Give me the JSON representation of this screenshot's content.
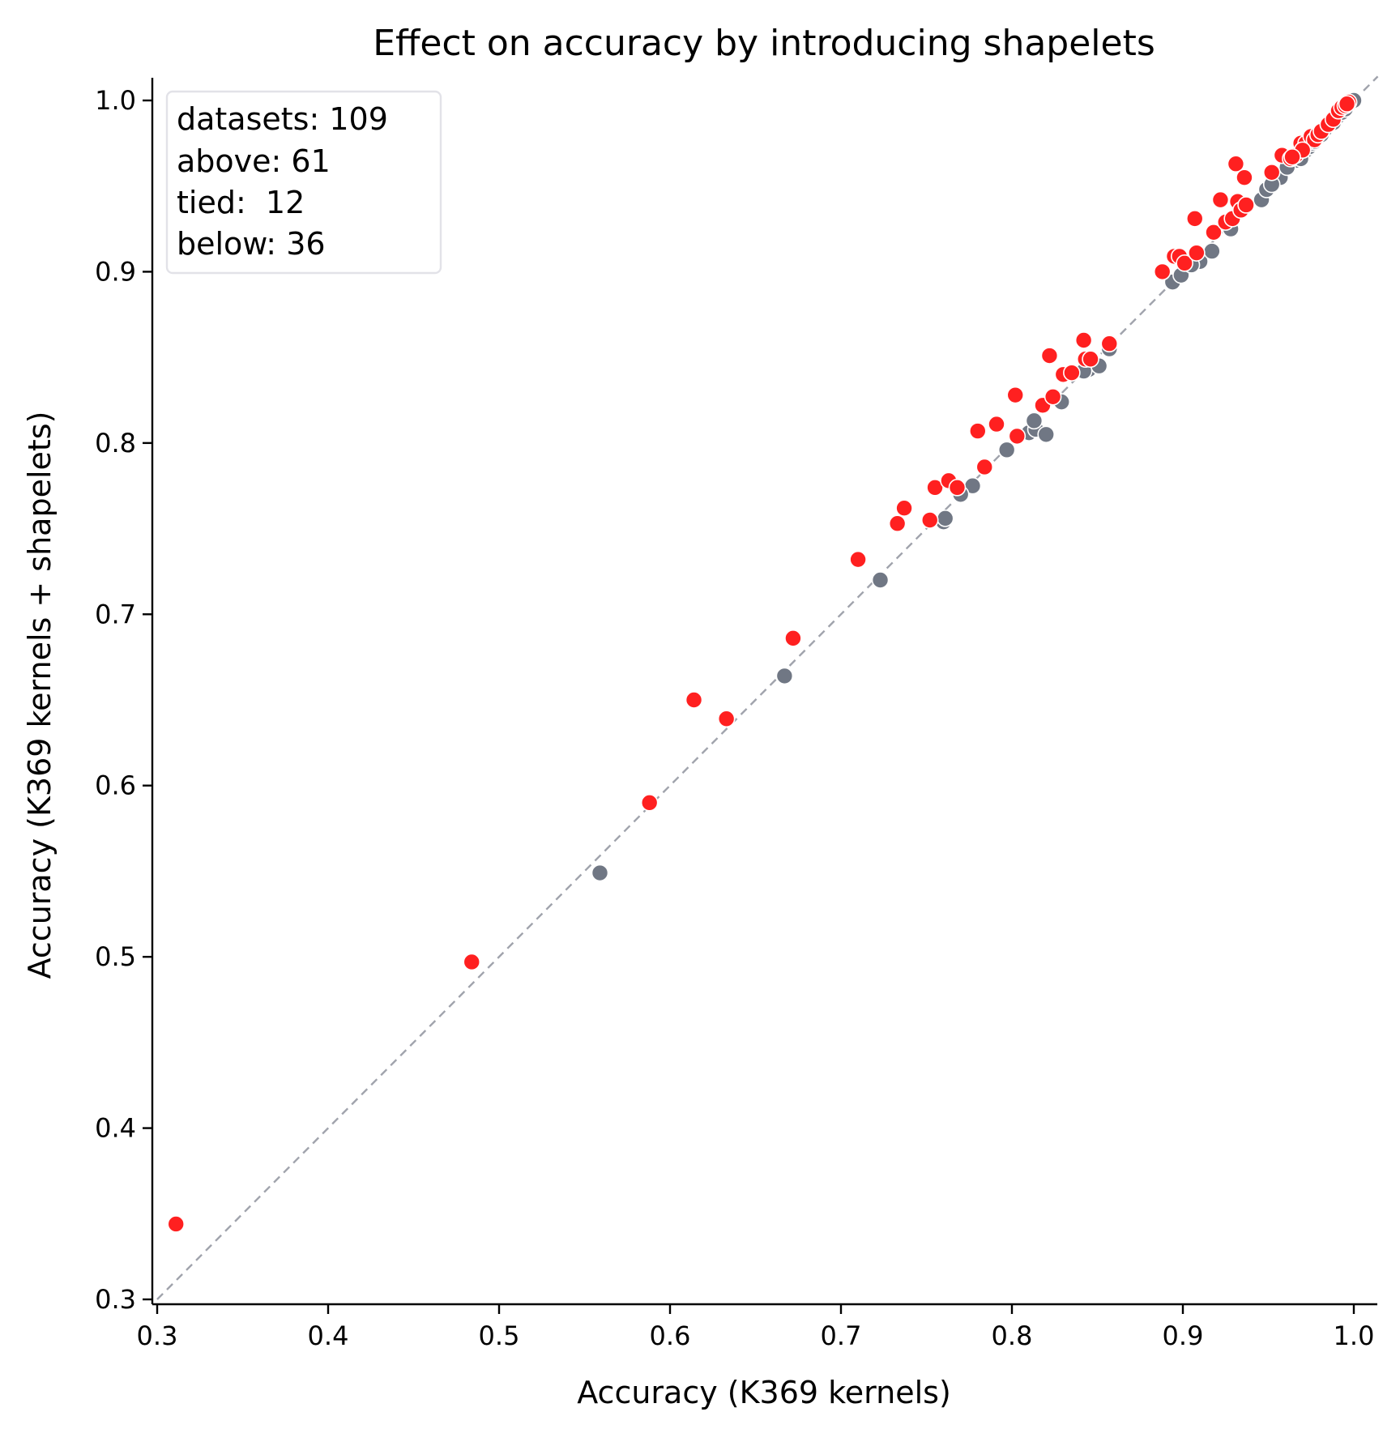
{
  "chart_data": {
    "type": "scatter",
    "title": "Effect on accuracy by introducing shapelets",
    "xlabel": "Accuracy (K369 kernels)",
    "ylabel": "Accuracy (K369 kernels + shapelets)",
    "xlim": [
      0.3,
      1.0
    ],
    "ylim": [
      0.3,
      1.0
    ],
    "xticks": [
      "0.3",
      "0.4",
      "0.5",
      "0.6",
      "0.7",
      "0.8",
      "0.9",
      "1.0"
    ],
    "yticks": [
      "0.3",
      "0.4",
      "0.5",
      "0.6",
      "0.7",
      "0.8",
      "0.9",
      "1.0"
    ],
    "grid": false,
    "legend": "none",
    "stats": [
      "datasets: 109",
      "above: 61",
      "tied:  12",
      "below: 36"
    ],
    "stats_placement": "top-left",
    "colors": {
      "above": "#ff2020",
      "other": "#707784",
      "diagonal": "#a0a3ac"
    },
    "series": [
      {
        "group": "above",
        "points": [
          [
            0.311,
            0.344
          ],
          [
            0.484,
            0.497
          ],
          [
            0.588,
            0.59
          ],
          [
            0.614,
            0.65
          ],
          [
            0.633,
            0.639
          ],
          [
            0.672,
            0.686
          ],
          [
            0.71,
            0.732
          ],
          [
            0.733,
            0.753
          ],
          [
            0.737,
            0.762
          ],
          [
            0.752,
            0.755
          ],
          [
            0.755,
            0.774
          ],
          [
            0.763,
            0.778
          ],
          [
            0.768,
            0.774
          ],
          [
            0.78,
            0.807
          ],
          [
            0.784,
            0.786
          ],
          [
            0.791,
            0.811
          ],
          [
            0.802,
            0.828
          ],
          [
            0.803,
            0.804
          ],
          [
            0.818,
            0.822
          ],
          [
            0.822,
            0.851
          ],
          [
            0.824,
            0.827
          ],
          [
            0.83,
            0.84
          ],
          [
            0.835,
            0.841
          ],
          [
            0.842,
            0.86
          ],
          [
            0.843,
            0.849
          ],
          [
            0.846,
            0.849
          ],
          [
            0.857,
            0.858
          ],
          [
            0.888,
            0.9
          ],
          [
            0.895,
            0.909
          ],
          [
            0.898,
            0.909
          ],
          [
            0.901,
            0.905
          ],
          [
            0.907,
            0.931
          ],
          [
            0.908,
            0.911
          ],
          [
            0.918,
            0.923
          ],
          [
            0.922,
            0.942
          ],
          [
            0.925,
            0.929
          ],
          [
            0.929,
            0.931
          ],
          [
            0.931,
            0.963
          ],
          [
            0.932,
            0.941
          ],
          [
            0.934,
            0.936
          ],
          [
            0.936,
            0.955
          ],
          [
            0.937,
            0.939
          ],
          [
            0.952,
            0.958
          ],
          [
            0.958,
            0.968
          ],
          [
            0.963,
            0.966
          ],
          [
            0.966,
            0.968
          ],
          [
            0.969,
            0.975
          ],
          [
            0.972,
            0.975
          ],
          [
            0.975,
            0.979
          ],
          [
            0.977,
            0.977
          ],
          [
            0.979,
            0.98
          ],
          [
            0.981,
            0.982
          ],
          [
            0.985,
            0.986
          ],
          [
            0.988,
            0.989
          ],
          [
            0.991,
            0.994
          ],
          [
            0.993,
            0.996
          ],
          [
            0.995,
            0.997
          ],
          [
            0.997,
            0.999
          ],
          [
            0.996,
            0.998
          ],
          [
            0.97,
            0.971
          ],
          [
            0.964,
            0.967
          ]
        ]
      },
      {
        "group": "tied_or_below",
        "points": [
          [
            0.559,
            0.549
          ],
          [
            0.667,
            0.664
          ],
          [
            0.723,
            0.72
          ],
          [
            0.76,
            0.754
          ],
          [
            0.761,
            0.756
          ],
          [
            0.777,
            0.775
          ],
          [
            0.797,
            0.796
          ],
          [
            0.81,
            0.806
          ],
          [
            0.814,
            0.808
          ],
          [
            0.82,
            0.805
          ],
          [
            0.829,
            0.824
          ],
          [
            0.845,
            0.843
          ],
          [
            0.851,
            0.845
          ],
          [
            0.857,
            0.855
          ],
          [
            0.894,
            0.894
          ],
          [
            0.91,
            0.906
          ],
          [
            0.917,
            0.912
          ],
          [
            0.928,
            0.925
          ],
          [
            0.946,
            0.942
          ],
          [
            0.949,
            0.948
          ],
          [
            0.957,
            0.955
          ],
          [
            0.966,
            0.965
          ],
          [
            0.968,
            0.967
          ],
          [
            0.97,
            0.969
          ],
          [
            0.972,
            0.971
          ],
          [
            0.974,
            0.973
          ],
          [
            0.976,
            0.975
          ],
          [
            0.979,
            0.978
          ],
          [
            0.983,
            0.983
          ],
          [
            0.986,
            0.986
          ],
          [
            0.99,
            0.99
          ],
          [
            0.993,
            0.993
          ],
          [
            0.996,
            0.996
          ],
          [
            0.998,
            0.998
          ],
          [
            0.999,
            0.999
          ],
          [
            1.0,
            1.0
          ],
          [
            0.969,
            0.966
          ],
          [
            0.977,
            0.976
          ],
          [
            0.952,
            0.951
          ],
          [
            0.899,
            0.898
          ],
          [
            0.905,
            0.904
          ],
          [
            0.842,
            0.842
          ],
          [
            0.813,
            0.813
          ],
          [
            0.77,
            0.77
          ],
          [
            0.961,
            0.961
          ],
          [
            0.981,
            0.98
          ],
          [
            0.988,
            0.987
          ],
          [
            0.995,
            0.995
          ]
        ]
      }
    ]
  }
}
